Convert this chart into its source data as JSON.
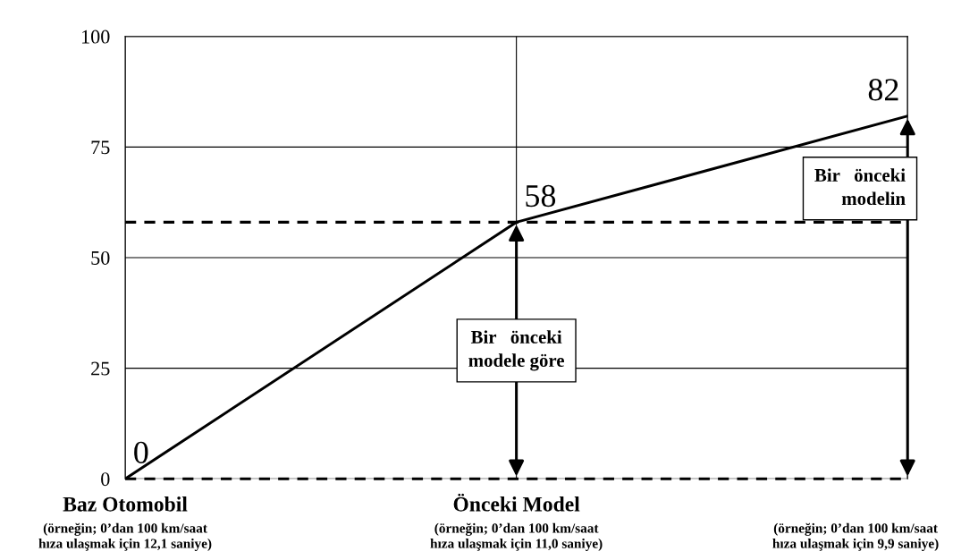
{
  "chart_data": {
    "type": "line",
    "categories": [
      "Baz Otomobil",
      "Önceki Model",
      null
    ],
    "values": [
      0,
      58,
      82
    ],
    "color": "#000000",
    "data_labels": true,
    "marker": "none",
    "line_style": "solid",
    "ylim": [
      0,
      100
    ],
    "yticks": [
      0,
      25,
      50,
      75,
      100
    ],
    "grid": true,
    "ref_lines": [
      {
        "axis": "y",
        "value": 58,
        "line_style": "dashed",
        "color": "#000000"
      },
      {
        "axis": "y",
        "value": 0,
        "line_style": "dashed",
        "color": "#000000"
      }
    ],
    "annotations": [
      "(örneğin; 0’dan 100 km/saat\nhıza ulaşmak için 12,1 saniye)",
      "(örneğin; 0’dan 100 km/saat\nhıza ulaşmak için 11,0 saniye)",
      "(örneğin; 0’dan 100 km/saat\nhıza ulaşmak için 9,9 saniye)",
      "Bir   önceki\nmodele göre",
      "Bir   önceki\nmodelin"
    ]
  }
}
